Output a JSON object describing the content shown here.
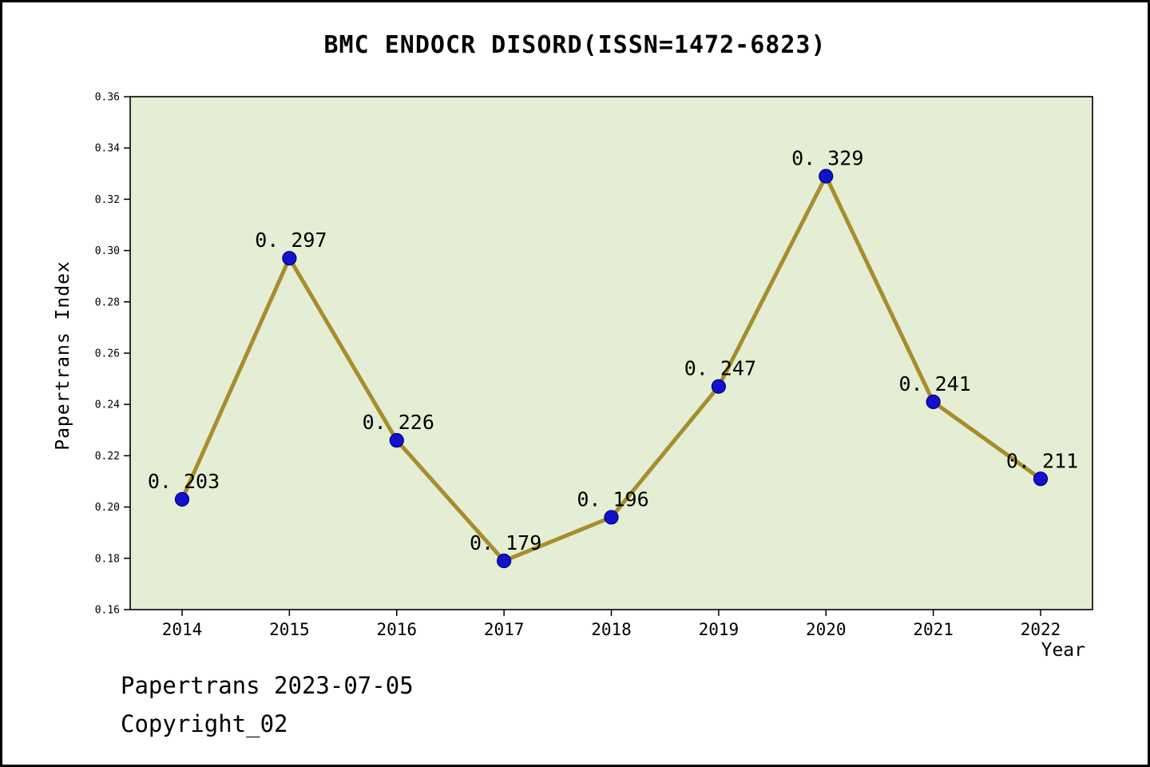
{
  "title": "BMC ENDOCR DISORD(ISSN=1472-6823)",
  "footer": {
    "line1": "Papertrans 2023-07-05",
    "line2": "Copyright_02"
  },
  "chart_data": {
    "type": "line",
    "title": "BMC ENDOCR DISORD(ISSN=1472-6823)",
    "xlabel": "Year",
    "ylabel": "Papertrans Index",
    "categories": [
      "2014",
      "2015",
      "2016",
      "2017",
      "2018",
      "2019",
      "2020",
      "2021",
      "2022"
    ],
    "values": [
      0.203,
      0.297,
      0.226,
      0.179,
      0.196,
      0.247,
      0.329,
      0.241,
      0.211
    ],
    "point_labels": [
      "0. 203",
      "0. 297",
      "0. 226",
      "0. 179",
      "0. 196",
      "0. 247",
      "0. 329",
      "0. 241",
      "0. 211"
    ],
    "ylim": [
      0.16,
      0.36
    ],
    "ytick_step": 0.02,
    "grid": false,
    "legend": "none",
    "colors": {
      "line": "#a88c2d",
      "marker": "#1212cc",
      "marker_edge": "#00007a",
      "plot_bg": "#e4eed5",
      "page_bg": "#ffffff",
      "text": "#000000"
    }
  }
}
